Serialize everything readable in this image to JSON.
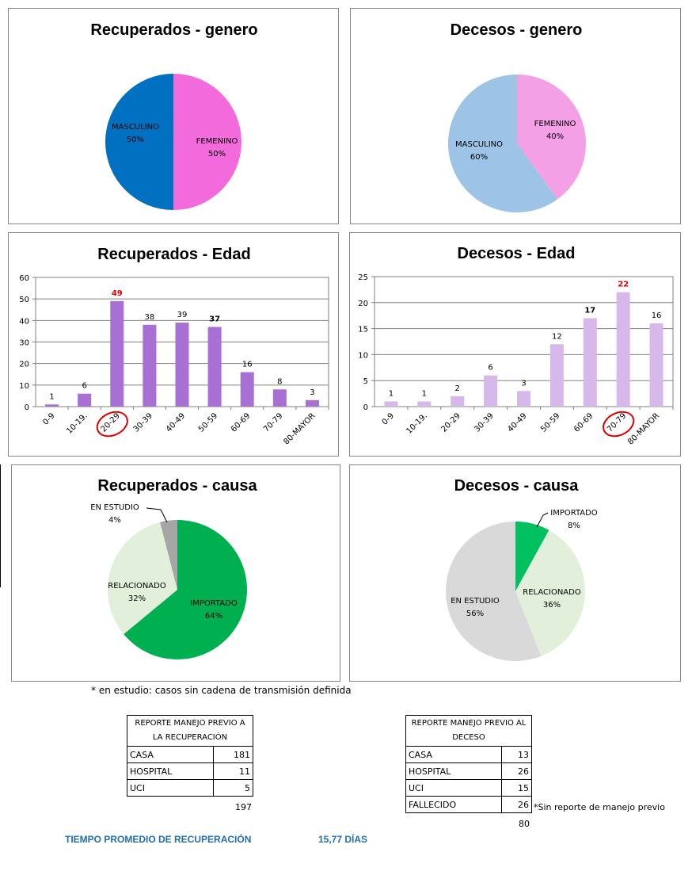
{
  "pies": {
    "rec_genero": {
      "title": "Recuperados - genero",
      "slices": [
        {
          "name": "FEMENINO",
          "pct": "50%",
          "value": 50,
          "color": "#f26adc"
        },
        {
          "name": "MASCULINO",
          "pct": "50%",
          "value": 50,
          "color": "#0070c0"
        }
      ]
    },
    "dec_genero": {
      "title": "Decesos - genero",
      "slices": [
        {
          "name": "FEMENINO",
          "pct": "40%",
          "value": 40,
          "color": "#f4a0e6"
        },
        {
          "name": "MASCULINO",
          "pct": "60%",
          "value": 60,
          "color": "#9dc3e6"
        }
      ]
    },
    "rec_causa": {
      "title": "Recuperados - causa",
      "slices": [
        {
          "name": "IMPORTADO",
          "pct": "64%",
          "value": 64,
          "color": "#00b050"
        },
        {
          "name": "RELACIONADO",
          "pct": "32%",
          "value": 32,
          "color": "#e2efda"
        },
        {
          "name": "EN ESTUDIO",
          "pct": "4%",
          "value": 4,
          "color": "#a6a6a6"
        }
      ]
    },
    "dec_causa": {
      "title": "Decesos - causa",
      "slices": [
        {
          "name": "IMPORTADO",
          "pct": "8%",
          "value": 8,
          "color": "#00c060"
        },
        {
          "name": "RELACIONADO",
          "pct": "36%",
          "value": 36,
          "color": "#e2efda"
        },
        {
          "name": "EN ESTUDIO",
          "pct": "56%",
          "value": 56,
          "color": "#d9d9d9"
        }
      ]
    }
  },
  "chart_data": [
    {
      "type": "pie",
      "title": "Recuperados - genero",
      "categories": [
        "FEMENINO",
        "MASCULINO"
      ],
      "values": [
        50,
        50
      ]
    },
    {
      "type": "pie",
      "title": "Decesos - genero",
      "categories": [
        "FEMENINO",
        "MASCULINO"
      ],
      "values": [
        40,
        60
      ]
    },
    {
      "type": "bar",
      "title": "Recuperados - Edad",
      "categories": [
        "0-9",
        "10-19.",
        "20-29",
        "30-39",
        "40-49",
        "50-59",
        "60-69",
        "70-79",
        "80-MAYOR"
      ],
      "values": [
        1,
        6,
        49,
        38,
        39,
        37,
        16,
        8,
        3
      ],
      "ylim": [
        0,
        60
      ],
      "yticks": [
        0,
        10,
        20,
        30,
        40,
        50,
        60
      ],
      "bar_color": "#a86fd4",
      "highlight": {
        "label_red": "20-29",
        "circled": "20-29",
        "bold_values": [
          "49",
          "37"
        ]
      },
      "grid": true
    },
    {
      "type": "bar",
      "title": "Decesos - Edad",
      "categories": [
        "0-9",
        "10-19.",
        "20-29",
        "30-39",
        "40-49",
        "50-59",
        "60-69",
        "70-79",
        "80-MAYOR"
      ],
      "values": [
        1,
        1,
        2,
        6,
        3,
        12,
        17,
        22,
        16
      ],
      "ylim": [
        0,
        25
      ],
      "yticks": [
        0,
        5,
        10,
        15,
        20,
        25
      ],
      "bar_color": "#d7b8ea",
      "highlight": {
        "label_red": "70-79",
        "circled": "70-79",
        "bold_values": [
          "17"
        ]
      },
      "grid": true
    },
    {
      "type": "pie",
      "title": "Recuperados - causa",
      "categories": [
        "IMPORTADO",
        "RELACIONADO",
        "EN ESTUDIO"
      ],
      "values": [
        64,
        32,
        4
      ]
    },
    {
      "type": "pie",
      "title": "Decesos - causa",
      "categories": [
        "IMPORTADO",
        "RELACIONADO",
        "EN ESTUDIO"
      ],
      "values": [
        8,
        36,
        56
      ]
    }
  ],
  "note": "* en estudio: casos sin cadena de transmisión definida",
  "table_rec": {
    "header": "REPORTE MANEJO PREVIO A LA RECUPERACIÓN",
    "rows": [
      {
        "label": "CASA",
        "value": "181"
      },
      {
        "label": "HOSPITAL",
        "value": "11"
      },
      {
        "label": "UCI",
        "value": "5"
      }
    ],
    "total": "197"
  },
  "table_dec": {
    "header": "REPORTE MANEJO PREVIO AL DECESO",
    "rows": [
      {
        "label": "CASA",
        "value": "13"
      },
      {
        "label": "HOSPITAL",
        "value": "26"
      },
      {
        "label": "UCI",
        "value": "15"
      },
      {
        "label": "FALLECIDO",
        "value": "26"
      }
    ],
    "total": "80",
    "footnote": "*Sin reporte de manejo previo"
  },
  "tiempo": {
    "label": "TIEMPO PROMEDIO DE RECUPERACIÓN",
    "value": "15,77  DÍAS"
  }
}
